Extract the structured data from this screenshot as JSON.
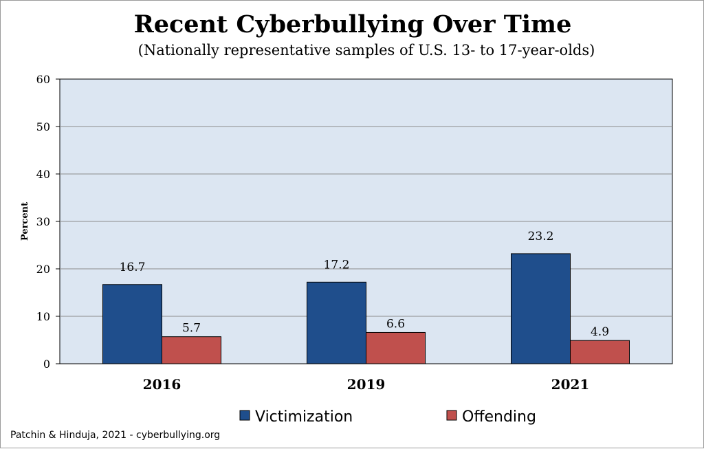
{
  "chart_data": {
    "type": "bar",
    "title": "Recent Cyberbullying Over Time",
    "subtitle": "(Nationally representative samples of U.S. 13- to 17-year-olds)",
    "ylabel": "Percent",
    "xlabel": "",
    "ylim": [
      0,
      60
    ],
    "yticks": [
      0,
      10,
      20,
      30,
      40,
      50,
      60
    ],
    "grid": true,
    "legend_position": "bottom",
    "categories": [
      "2016",
      "2019",
      "2021"
    ],
    "series": [
      {
        "name": "Victimization",
        "color": "#1f4e8c",
        "values": [
          16.7,
          17.2,
          23.2
        ],
        "labels": [
          "16.7",
          "17.2",
          "23.2"
        ]
      },
      {
        "name": "Offending",
        "color": "#c0504d",
        "values": [
          5.7,
          6.6,
          4.9
        ],
        "labels": [
          "5.7",
          "6.6",
          "4.9"
        ]
      }
    ],
    "plot_background": "#dce6f2"
  },
  "source": "Patchin & Hinduja, 2021 - cyberbullying.org"
}
